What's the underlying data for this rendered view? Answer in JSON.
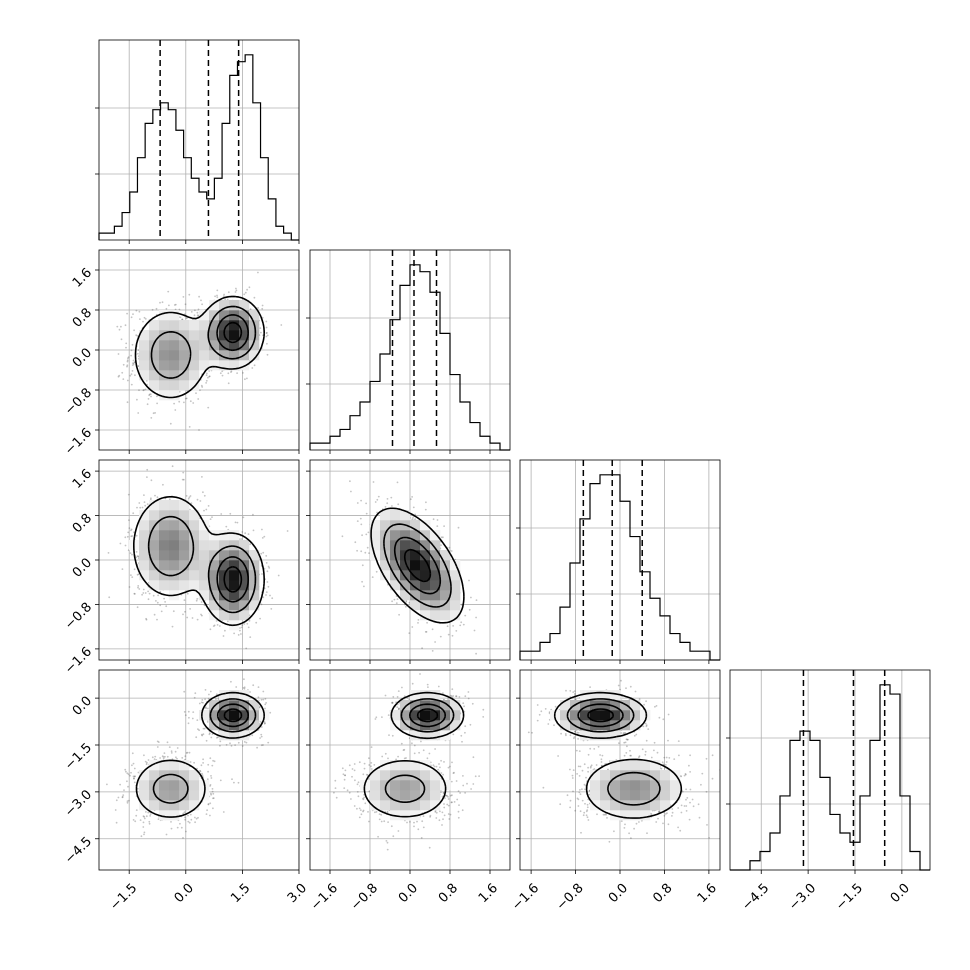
{
  "chart_data": {
    "type": "corner",
    "description_title": "",
    "variables": [
      {
        "index": 0,
        "range": [
          -2.3,
          3.0
        ],
        "ticks": [
          -1.5,
          0.0,
          1.5,
          3.0
        ],
        "tick_labels": [
          "−1.5",
          "0.0",
          "1.5",
          "3.0"
        ],
        "quantiles": [
          -0.68,
          0.6,
          1.4
        ],
        "hist": [
          1,
          1,
          2,
          4,
          7,
          12,
          17,
          19,
          20,
          19,
          16,
          12,
          9,
          7,
          6,
          9,
          17,
          24,
          26,
          27,
          20,
          12,
          6,
          2,
          1,
          0
        ],
        "modes": [
          {
            "mean": -0.4,
            "sd": 0.55,
            "weight": 0.5
          },
          {
            "mean": 1.25,
            "sd": 0.4,
            "weight": 0.5
          }
        ]
      },
      {
        "index": 1,
        "range": [
          -2.0,
          2.0
        ],
        "ticks": [
          -1.6,
          -0.8,
          0.0,
          0.8,
          1.6
        ],
        "tick_labels": [
          "−1.6",
          "−0.8",
          "0.0",
          "0.8",
          "1.6"
        ],
        "quantiles": [
          -0.35,
          0.08,
          0.53
        ],
        "hist": [
          1,
          1,
          2,
          3,
          5,
          7,
          10,
          14,
          19,
          24,
          27,
          26,
          23,
          17,
          11,
          7,
          4,
          2,
          1,
          0
        ],
        "modes": [
          {
            "mean": -0.1,
            "sd": 0.5,
            "weight": 0.5
          },
          {
            "mean": 0.35,
            "sd": 0.35,
            "weight": 0.5
          }
        ]
      },
      {
        "index": 2,
        "range": [
          -1.8,
          1.8
        ],
        "ticks": [
          -1.6,
          -0.8,
          0.0,
          0.8,
          1.6
        ],
        "tick_labels": [
          "−1.6",
          "−0.8",
          "0.0",
          "0.8",
          "1.6"
        ],
        "quantiles": [
          -0.66,
          -0.14,
          0.4
        ],
        "hist": [
          1,
          1,
          2,
          3,
          6,
          11,
          16,
          20,
          21,
          21,
          18,
          14,
          10,
          7,
          5,
          3,
          2,
          1,
          1,
          0
        ],
        "modes": [
          {
            "mean": 0.25,
            "sd": 0.5,
            "weight": 0.5
          },
          {
            "mean": -0.35,
            "sd": 0.4,
            "weight": 0.5
          }
        ]
      },
      {
        "index": 3,
        "range": [
          -5.5,
          0.9
        ],
        "ticks": [
          -4.5,
          -3.0,
          -1.5,
          0.0
        ],
        "tick_labels": [
          "−4.5",
          "−3.0",
          "−1.5",
          "0.0"
        ],
        "quantiles": [
          -3.15,
          -1.55,
          -0.55
        ],
        "hist": [
          0,
          0,
          1,
          2,
          4,
          8,
          14,
          15,
          14,
          10,
          6,
          4,
          3,
          8,
          14,
          20,
          19,
          8,
          2,
          0
        ],
        "modes": [
          {
            "mean": -2.9,
            "sd": 0.55,
            "weight": 0.5
          },
          {
            "mean": -0.55,
            "sd": 0.35,
            "weight": 0.5
          }
        ]
      }
    ],
    "pairs": [
      {
        "row": 1,
        "col": 0,
        "modes": [
          {
            "x": -0.4,
            "y": -0.1,
            "sx": 0.55,
            "sy": 0.5
          },
          {
            "x": 1.25,
            "y": 0.35,
            "sx": 0.4,
            "sy": 0.35
          }
        ]
      },
      {
        "row": 2,
        "col": 0,
        "modes": [
          {
            "x": -0.4,
            "y": 0.25,
            "sx": 0.55,
            "sy": 0.5
          },
          {
            "x": 1.25,
            "y": -0.35,
            "sx": 0.4,
            "sy": 0.4
          }
        ]
      },
      {
        "row": 2,
        "col": 1,
        "modes": [
          {
            "x": 0.15,
            "y": -0.1,
            "sx": 0.45,
            "sy": 0.5,
            "rho": -0.55
          }
        ]
      },
      {
        "row": 3,
        "col": 0,
        "modes": [
          {
            "x": -0.4,
            "y": -2.9,
            "sx": 0.55,
            "sy": 0.55
          },
          {
            "x": 1.25,
            "y": -0.55,
            "sx": 0.4,
            "sy": 0.35
          }
        ]
      },
      {
        "row": 3,
        "col": 1,
        "modes": [
          {
            "x": -0.1,
            "y": -2.9,
            "sx": 0.5,
            "sy": 0.55
          },
          {
            "x": 0.35,
            "y": -0.55,
            "sx": 0.35,
            "sy": 0.35
          }
        ]
      },
      {
        "row": 3,
        "col": 2,
        "modes": [
          {
            "x": 0.25,
            "y": -2.9,
            "sx": 0.5,
            "sy": 0.55
          },
          {
            "x": -0.35,
            "y": -0.55,
            "sx": 0.4,
            "sy": 0.35
          }
        ]
      }
    ],
    "grid": true,
    "contour_levels": 4
  }
}
